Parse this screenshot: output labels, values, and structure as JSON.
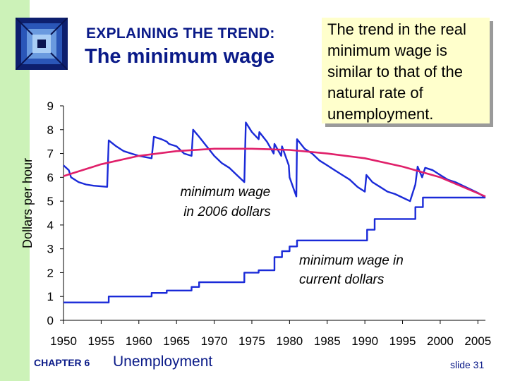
{
  "slide": {
    "supertitle": "EXPLAINING THE TREND:",
    "title": "The minimum wage",
    "callout": "The trend in the real minimum wage is similar to that of the natural rate of unemployment.",
    "chapter_label": "CHAPTER 6",
    "chapter_name": "Unemployment",
    "slide_number": "slide 31",
    "colors": {
      "sidebar": "#ccf2b8",
      "title": "#0a1a88",
      "series_line": "#1a2ad8",
      "trend_line": "#e0206a",
      "callout_bg": "#ffffcc"
    }
  },
  "chart_data": {
    "type": "line",
    "ylabel": "Dollars per hour",
    "xlabel": "",
    "xlim": [
      1950,
      2006
    ],
    "ylim": [
      0,
      9
    ],
    "x_ticks": [
      "1950",
      "1955",
      "1960",
      "1965",
      "1970",
      "1975",
      "1980",
      "1985",
      "1990",
      "1995",
      "2000",
      "2005"
    ],
    "y_ticks": [
      "0",
      "1",
      "2",
      "3",
      "4",
      "5",
      "6",
      "7",
      "8",
      "9"
    ],
    "annotations": [
      {
        "text_lines": [
          "minimum wage",
          "in 2006 dollars"
        ]
      },
      {
        "text_lines": [
          "minimum wage in",
          "current dollars"
        ]
      }
    ],
    "series": [
      {
        "label": "minimum wage in 2006 dollars",
        "color": "#1a2ad8",
        "x": [
          1950,
          1950.7,
          1951,
          1952,
          1953,
          1954,
          1955.8,
          1956,
          1957,
          1958,
          1959,
          1960,
          1961.7,
          1962,
          1963,
          1963.7,
          1964,
          1965,
          1966,
          1967,
          1967.2,
          1968,
          1969,
          1970,
          1971,
          1972,
          1973,
          1974,
          1974.2,
          1975,
          1975.9,
          1976,
          1977,
          1977.9,
          1978,
          1978.9,
          1979,
          1979.9,
          1980,
          1980.9,
          1981,
          1982,
          1983,
          1984,
          1985,
          1986,
          1987,
          1988,
          1989,
          1990,
          1990.2,
          1991,
          1992,
          1993,
          1994,
          1995,
          1996,
          1996.7,
          1997,
          1997.6,
          1998,
          1999,
          2000,
          2001,
          2002,
          2003,
          2004,
          2005,
          2006
        ],
        "y": [
          6.5,
          6.3,
          6.0,
          5.8,
          5.7,
          5.65,
          5.6,
          7.55,
          7.3,
          7.1,
          7.0,
          6.9,
          6.8,
          7.7,
          7.6,
          7.5,
          7.4,
          7.3,
          7.0,
          6.9,
          8.0,
          7.7,
          7.3,
          6.9,
          6.6,
          6.4,
          6.1,
          5.8,
          8.3,
          7.9,
          7.6,
          7.9,
          7.5,
          7.0,
          7.4,
          6.9,
          7.3,
          6.5,
          6.0,
          5.2,
          7.6,
          7.2,
          7.0,
          6.7,
          6.5,
          6.3,
          6.1,
          5.9,
          5.6,
          5.4,
          6.1,
          5.8,
          5.6,
          5.4,
          5.3,
          5.15,
          5.0,
          5.7,
          6.45,
          6.0,
          6.4,
          6.3,
          6.1,
          5.9,
          5.8,
          5.65,
          5.5,
          5.35,
          5.15
        ]
      },
      {
        "label": "minimum wage in current dollars",
        "color": "#1a2ad8",
        "x": [
          1950,
          1956,
          1961.7,
          1963.7,
          1967,
          1968,
          1974,
          1975.9,
          1978,
          1979,
          1980,
          1981,
          1990.3,
          1991.3,
          1996.7,
          1997.7,
          2006
        ],
        "y": [
          0.75,
          1.0,
          1.15,
          1.25,
          1.4,
          1.6,
          2.0,
          2.1,
          2.65,
          2.9,
          3.1,
          3.35,
          3.8,
          4.25,
          4.75,
          5.15,
          5.15
        ]
      },
      {
        "label": "trend",
        "color": "#e0206a",
        "x": [
          1950,
          1955,
          1960,
          1965,
          1970,
          1975,
          1980,
          1985,
          1990,
          1995,
          2000,
          2006
        ],
        "y": [
          6.05,
          6.55,
          6.9,
          7.1,
          7.2,
          7.2,
          7.15,
          7.0,
          6.8,
          6.45,
          6.0,
          5.2
        ]
      }
    ]
  }
}
